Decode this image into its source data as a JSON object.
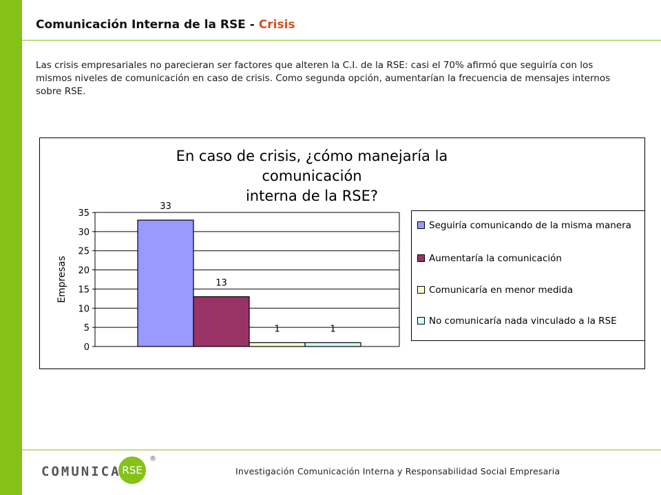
{
  "header": {
    "title_main": "Comunicación Interna de la RSE - ",
    "title_accent": "Crisis"
  },
  "intro_text": "Las crisis empresariales no parecieran ser factores que alteren la C.I. de la RSE: casi el 70% afirmó que seguiría con los mismos niveles de comunicación en caso de crisis. Como segunda opción, aumentarían la frecuencia de mensajes internos sobre RSE.",
  "chart_data": {
    "type": "bar",
    "title_line1": "En caso de crisis, ¿cómo manejaría la comunicación",
    "title_line2": "interna de la RSE?",
    "ylabel": "Empresas",
    "xlabel": "",
    "ylim": [
      0,
      35
    ],
    "yticks": [
      0,
      5,
      10,
      15,
      20,
      25,
      30,
      35
    ],
    "grid": true,
    "legend_position": "right",
    "categories": [
      "Seguiría comunicando de la misma manera",
      "Aumentaría la comunicación",
      "Comunicaría en menor medida",
      "No comunicaría nada vinculado a la RSE"
    ],
    "values": [
      33,
      13,
      1,
      1
    ],
    "colors": [
      "#9999ff",
      "#993366",
      "#ffffcc",
      "#ccffff"
    ]
  },
  "footer": {
    "text": "Investigación Comunicación Interna y Responsabilidad Social Empresaria",
    "logo_word": "COMUNICA",
    "logo_circle": "RSE",
    "logo_reg": "®"
  },
  "colors": {
    "accent_green": "#84c21a",
    "accent_orange": "#d4501e"
  }
}
